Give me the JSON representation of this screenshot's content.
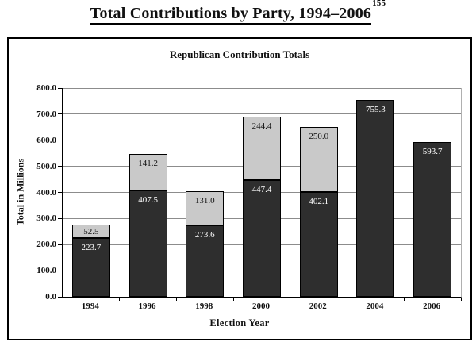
{
  "page_title": {
    "text": "Total Contributions by Party, 1994–2006",
    "footnote": "155"
  },
  "chart_data": {
    "type": "bar",
    "stacked": true,
    "title": "Republican Contribution Totals",
    "xlabel": "Election Year",
    "ylabel": "Total in Millions",
    "categories": [
      "1994",
      "1996",
      "1998",
      "2000",
      "2002",
      "2004",
      "2006"
    ],
    "series": [
      {
        "name": "bottom-dark-segment",
        "color": "#2e2e2e",
        "label_color": "#ffffff",
        "values": [
          223.7,
          407.5,
          273.6,
          447.4,
          402.1,
          755.3,
          593.7
        ]
      },
      {
        "name": "top-light-segment",
        "color": "#c9c9c9",
        "label_color": "#111111",
        "values": [
          52.5,
          141.2,
          131.0,
          244.4,
          250.0,
          null,
          null
        ]
      }
    ],
    "ylim": [
      0,
      800
    ],
    "y_tick_step": 100,
    "y_tick_labels": [
      "0.0",
      "100.0",
      "200.0",
      "300.0",
      "400.0",
      "500.0",
      "600.0",
      "700.0",
      "800.0"
    ],
    "grid": "horizontal",
    "legend": "none",
    "value_labels": "inside-top-of-each-segment"
  },
  "colors": {
    "axis": "#000000",
    "gridline": "#8c8c8c",
    "frame_border": "#000000",
    "background": "#ffffff"
  }
}
